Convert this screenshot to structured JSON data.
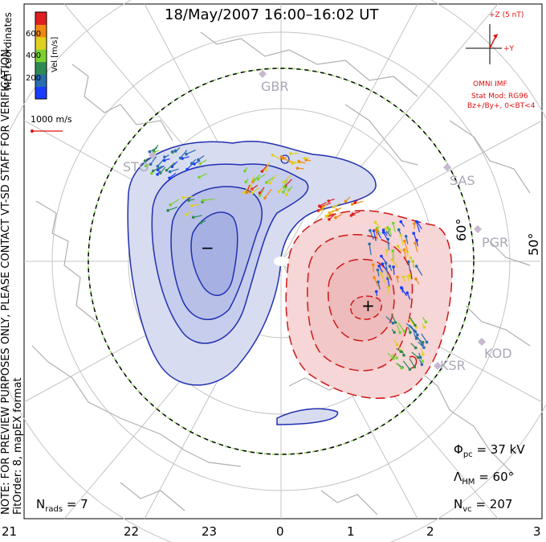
{
  "title": "18/May/2007  16:00–16:02  UT",
  "note_line1": "NOTE: FOR PREVIEW PURPOSES ONLY, PLEASE CONTACT VT-SD STAFF FOR VERIFICATION.",
  "note_line2": "FitOrder: 8, mapEX format",
  "mlt_coords": "MLT coordinates",
  "colorbar": {
    "unit": "Vel [m/s]",
    "ticks": [
      "200",
      "400",
      "600"
    ],
    "colors": [
      "#1a3cff",
      "#2a6db0",
      "#2e8a52",
      "#7ad230",
      "#e0d020",
      "#f08a10",
      "#e02020"
    ]
  },
  "velocity_scale": "1000 m/s",
  "mlt_ticks": [
    "21",
    "22",
    "23",
    "0",
    "1",
    "2",
    "3"
  ],
  "lat_labels": [
    "60°",
    "50°"
  ],
  "stations": [
    "GBR",
    "STO",
    "SAS",
    "PGR",
    "KOD",
    "KSR"
  ],
  "extrema": [
    "−",
    "+"
  ],
  "imf": {
    "scale": "+Z (5 nT)",
    "y_label": "+Y",
    "label": "OMNI IMF",
    "model": "Stat Mod: RG96",
    "bin": "Bz+/By+, 0<BT<4"
  },
  "stats": {
    "phi_sym": "Φ",
    "phi_sub": "pc",
    "phi_val": "=  37 kV",
    "lambda_sym": "Λ",
    "lambda_sub": "HM",
    "lambda_val": "=  60°",
    "nvc_sym": "N",
    "nvc_sub": "vc",
    "nvc_val": "=  207",
    "nrads_sym": "N",
    "nrads_sub": "rads",
    "nrads_val": "=  7"
  },
  "colors": {
    "negative_cell": "#2030b0",
    "positive_cell": "#d01818",
    "negative_fill": "#d8dcf0",
    "positive_fill": "#f6d6d6"
  }
}
